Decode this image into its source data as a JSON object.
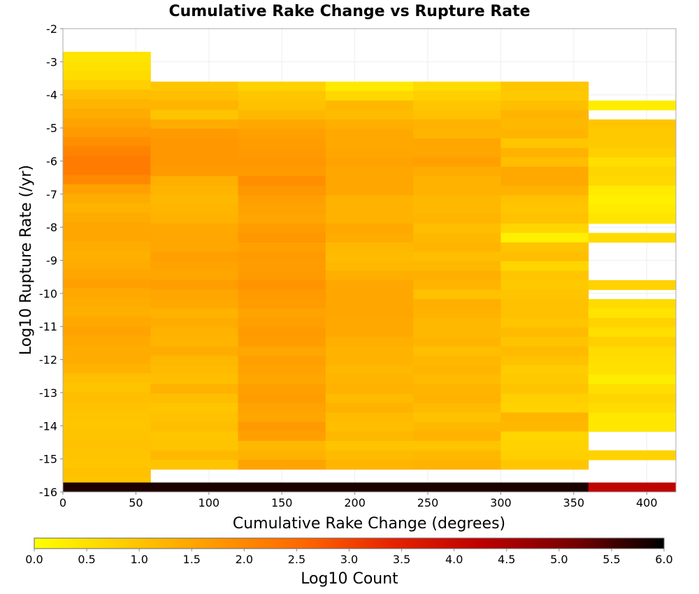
{
  "chart_data": {
    "type": "heatmap",
    "title": "Cumulative Rake Change vs Rupture Rate",
    "xlabel": "Cumulative Rake Change (degrees)",
    "ylabel": "Log10 Rupture Rate (/yr)",
    "colorbar_label": "Log10 Count",
    "xlim": [
      0,
      420
    ],
    "ylim": [
      -16,
      -2
    ],
    "xticks": [
      0,
      50,
      100,
      150,
      200,
      250,
      300,
      350,
      400
    ],
    "yticks": [
      -2,
      -3,
      -4,
      -5,
      -6,
      -7,
      -8,
      -9,
      -10,
      -11,
      -12,
      -13,
      -14,
      -15,
      -16
    ],
    "colorbar_ticks": [
      0.0,
      0.5,
      1.0,
      1.5,
      2.0,
      2.5,
      3.0,
      3.5,
      4.0,
      4.5,
      5.0,
      5.5,
      6.0
    ],
    "colorbar_range": [
      0.0,
      6.0
    ],
    "colorscale": [
      "#ffff00",
      "#ffcc00",
      "#ff9900",
      "#ff6600",
      "#e52200",
      "#bb0000",
      "#770000",
      "#000000"
    ],
    "grid": true,
    "x_bin_width": 60,
    "y_bin_height": 0.2857,
    "columns": [
      {
        "x_start": 0,
        "x_end": 60,
        "top_row_value": -2.7,
        "values": [
          0.45,
          0.5,
          0.6,
          0.8,
          1.1,
          1.25,
          1.4,
          1.55,
          1.7,
          1.9,
          2.1,
          2.2,
          2.2,
          2.0,
          1.6,
          1.4,
          1.3,
          1.4,
          1.5,
          1.5,
          1.4,
          1.35,
          1.4,
          1.5,
          1.6,
          1.45,
          1.4,
          1.35,
          1.45,
          1.55,
          1.45,
          1.4,
          1.4,
          1.3,
          1.1,
          1.0,
          1.1,
          1.05,
          1.0,
          0.95,
          1.0,
          1.05,
          1.0,
          0.95,
          1.05,
          1.0,
          5.8
        ]
      },
      {
        "x_start": 60,
        "x_end": 120,
        "top_row_value": -3.6,
        "values": [
          0.95,
          1.1,
          1.25,
          1.0,
          1.4,
          1.7,
          1.75,
          1.75,
          1.75,
          1.7,
          1.35,
          1.25,
          1.2,
          1.25,
          1.3,
          1.45,
          1.5,
          1.5,
          1.6,
          1.55,
          1.5,
          1.65,
          1.5,
          1.45,
          1.3,
          1.4,
          1.3,
          1.25,
          1.4,
          1.2,
          1.15,
          1.1,
          1.3,
          1.1,
          0.95,
          1.05,
          1.1,
          0.95,
          1.0,
          1.2,
          1.0,
          5.8
        ]
      },
      {
        "x_start": 120,
        "x_end": 180,
        "top_row_value": -3.6,
        "values": [
          0.75,
          0.95,
          1.05,
          1.2,
          1.45,
          1.6,
          1.65,
          1.7,
          1.75,
          1.7,
          1.9,
          1.75,
          1.6,
          1.55,
          1.5,
          1.65,
          1.75,
          1.6,
          1.7,
          1.65,
          1.7,
          1.8,
          1.7,
          1.65,
          1.55,
          1.6,
          1.7,
          1.65,
          1.5,
          1.6,
          1.55,
          1.5,
          1.6,
          1.65,
          1.55,
          1.5,
          1.7,
          1.6,
          1.2,
          1.3,
          1.55,
          5.8
        ]
      },
      {
        "x_start": 180,
        "x_end": 240,
        "top_row_value": -3.6,
        "values": [
          0.35,
          0.65,
          1.2,
          1.15,
          1.35,
          1.45,
          1.45,
          1.5,
          1.55,
          1.5,
          1.5,
          1.5,
          1.3,
          1.3,
          1.3,
          1.45,
          1.4,
          1.2,
          1.15,
          1.2,
          1.35,
          1.5,
          1.5,
          1.5,
          1.5,
          1.45,
          1.45,
          1.35,
          1.3,
          1.3,
          1.2,
          1.25,
          1.3,
          1.15,
          1.3,
          1.15,
          1.1,
          1.2,
          1.0,
          1.15,
          1.25,
          5.8
        ]
      },
      {
        "x_start": 240,
        "x_end": 300,
        "top_row_value": -3.6,
        "values": [
          0.6,
          0.8,
          0.95,
          1.05,
          1.3,
          1.25,
          1.5,
          1.5,
          1.6,
          1.4,
          1.3,
          1.3,
          1.2,
          1.2,
          1.25,
          1.1,
          1.2,
          1.25,
          1.1,
          1.2,
          1.35,
          1.25,
          1.05,
          1.35,
          1.3,
          1.2,
          1.2,
          1.25,
          1.1,
          1.2,
          1.25,
          1.15,
          1.25,
          1.3,
          1.15,
          1.05,
          1.2,
          1.3,
          1.0,
          1.2,
          1.3,
          5.8
        ]
      },
      {
        "x_start": 300,
        "x_end": 360,
        "top_row_value": -3.6,
        "values": [
          0.95,
          0.9,
          1.1,
          1.25,
          1.2,
          1.25,
          0.95,
          1.3,
          1.1,
          1.45,
          1.45,
          1.3,
          1.05,
          0.95,
          1.05,
          0.7,
          0.25,
          1.0,
          1.1,
          0.7,
          0.95,
          0.9,
          1.0,
          1.05,
          1.05,
          0.95,
          1.15,
          1.0,
          1.15,
          1.05,
          0.85,
          0.9,
          1.0,
          0.8,
          0.75,
          1.25,
          1.2,
          0.7,
          0.75,
          0.8,
          0.95,
          5.8
        ]
      },
      {
        "x_start": 360,
        "x_end": 420,
        "top_row_value": -3.6,
        "values": [
          null,
          null,
          0.3,
          null,
          0.95,
          0.9,
          0.9,
          0.8,
          0.55,
          0.7,
          0.65,
          0.35,
          0.25,
          0.35,
          0.45,
          null,
          0.6,
          null,
          null,
          null,
          null,
          0.75,
          null,
          0.6,
          0.45,
          0.75,
          0.55,
          0.8,
          0.6,
          0.55,
          0.5,
          0.3,
          0.55,
          0.7,
          0.6,
          0.4,
          0.4,
          null,
          null,
          0.75,
          null,
          4.2
        ]
      }
    ],
    "bottom_row_value": -16
  }
}
